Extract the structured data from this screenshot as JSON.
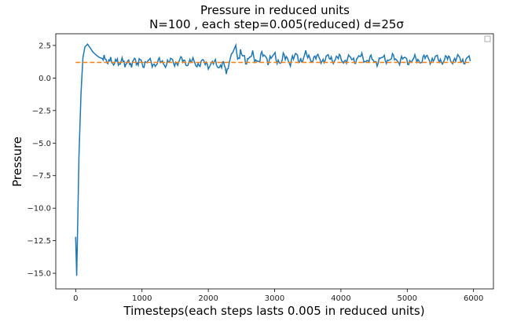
{
  "chart_data": {
    "type": "line",
    "title": "Pressure in reduced units",
    "subtitle": "N=100 , each step=0.005(reduced) d=25σ",
    "xlabel": "Timesteps(each steps lasts 0.005 in reduced units)",
    "ylabel": "Pressure",
    "xlim": [
      -300,
      6300
    ],
    "ylim": [
      -16.2,
      3.4
    ],
    "xticks": [
      0,
      1000,
      2000,
      3000,
      4000,
      5000,
      6000
    ],
    "xtick_labels": [
      "0",
      "1000",
      "2000",
      "3000",
      "4000",
      "5000",
      "6000"
    ],
    "yticks": [
      2.5,
      0.0,
      -2.5,
      -5.0,
      -7.5,
      -10.0,
      -12.5,
      -15.0
    ],
    "ytick_labels": [
      "2.5",
      "0.0",
      "−2.5",
      "−5.0",
      "−7.5",
      "−10.0",
      "−12.5",
      "−15.0"
    ],
    "grid": false,
    "legend": "top-right",
    "series": [
      {
        "color": "#1f77b4",
        "style": "solid",
        "x": [
          0,
          15,
          30,
          50,
          80,
          110,
          140,
          180,
          220,
          260,
          300,
          350,
          400,
          500,
          600,
          700,
          800,
          900,
          1000,
          1200,
          1400,
          1600,
          1800,
          2000,
          2200,
          2300,
          2350,
          2400,
          2500,
          2700,
          2900,
          3100,
          3300,
          3500,
          3700,
          3900,
          4100,
          4300,
          4500,
          4700,
          4900,
          5100,
          5300,
          5500,
          5700,
          5900,
          5950
        ],
        "y": [
          -12.2,
          -15.2,
          -11.5,
          -6.0,
          -1.2,
          1.6,
          2.4,
          2.6,
          2.3,
          2.0,
          1.8,
          1.6,
          1.5,
          1.3,
          1.2,
          1.25,
          1.1,
          1.3,
          1.2,
          1.15,
          1.2,
          1.3,
          1.15,
          1.1,
          1.0,
          0.7,
          1.9,
          2.1,
          1.6,
          1.5,
          1.6,
          1.4,
          1.5,
          1.6,
          1.45,
          1.5,
          1.4,
          1.55,
          1.3,
          1.5,
          1.4,
          1.35,
          1.5,
          1.4,
          1.45,
          1.4,
          1.3
        ]
      },
      {
        "color": "#ff7f0e",
        "style": "dashed",
        "x": [
          0,
          5950
        ],
        "y": [
          1.2,
          1.2
        ]
      }
    ]
  }
}
